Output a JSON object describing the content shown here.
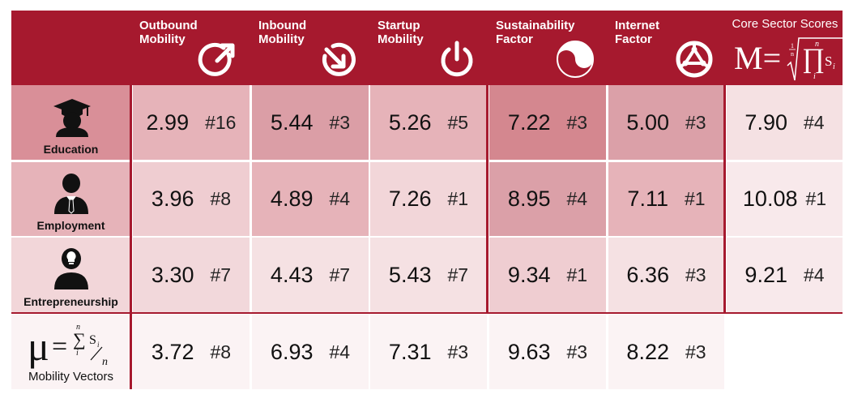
{
  "colors": {
    "header": "#a6192e",
    "line": "#a6192e"
  },
  "header": {
    "columns": [
      {
        "label": "Outbound\nMobility",
        "icon": "outbound-arrow-icon"
      },
      {
        "label": "Inbound\nMobility",
        "icon": "inbound-arrow-icon"
      },
      {
        "label": "Startup\nMobility",
        "icon": "power-icon"
      },
      {
        "label": "Sustainability\nFactor",
        "icon": "yin-yang-icon"
      },
      {
        "label": "Internet\nFactor",
        "icon": "globe-network-icon"
      }
    ],
    "core_title": "Core Sector Scores"
  },
  "rows": [
    {
      "label": "Education",
      "icon": "graduate-icon"
    },
    {
      "label": "Employment",
      "icon": "employee-icon"
    },
    {
      "label": "Entrepreneurship",
      "icon": "entrepreneur-icon"
    }
  ],
  "footer": {
    "label": "Mobility Vectors"
  },
  "chart_data": {
    "type": "table",
    "columns": [
      "Outbound Mobility",
      "Inbound Mobility",
      "Startup Mobility",
      "Sustainability Factor",
      "Internet Factor",
      "Core Sector Scores"
    ],
    "rows": [
      {
        "name": "Education",
        "values": [
          2.99,
          5.44,
          5.26,
          7.22,
          5.0,
          7.9
        ],
        "ranks": [
          "#16",
          "#3",
          "#5",
          "#3",
          "#3",
          "#4"
        ],
        "labels": [
          "2.99",
          "5.44",
          "5.26",
          "7.22",
          "5.00",
          "7.90"
        ]
      },
      {
        "name": "Employment",
        "values": [
          3.96,
          4.89,
          7.26,
          8.95,
          7.11,
          10.08
        ],
        "ranks": [
          "#8",
          "#4",
          "#1",
          "#4",
          "#1",
          "#1"
        ],
        "labels": [
          "3.96",
          "4.89",
          "7.26",
          "8.95",
          "7.11",
          "10.08"
        ]
      },
      {
        "name": "Entrepreneurship",
        "values": [
          3.3,
          4.43,
          5.43,
          9.34,
          6.36,
          9.21
        ],
        "ranks": [
          "#7",
          "#7",
          "#7",
          "#1",
          "#3",
          "#4"
        ],
        "labels": [
          "3.30",
          "4.43",
          "5.43",
          "9.34",
          "6.36",
          "9.21"
        ]
      },
      {
        "name": "Mobility Vectors",
        "values": [
          3.72,
          6.93,
          7.31,
          9.63,
          8.22
        ],
        "ranks": [
          "#8",
          "#4",
          "#3",
          "#3",
          "#3"
        ],
        "labels": [
          "3.72",
          "6.93",
          "7.31",
          "9.63",
          "8.22"
        ]
      }
    ],
    "cell_colors": [
      [
        "#e6b3b9",
        "#db9ea6",
        "#e6b3b9",
        "#d4878f",
        "#dba0a8",
        "#f5e1e3"
      ],
      [
        "#efcdd1",
        "#e6b3b9",
        "#f2d6d9",
        "#dba0a8",
        "#e6b3b9",
        "#f8e9eb"
      ],
      [
        "#f2d8db",
        "#f5e1e3",
        "#f5e1e3",
        "#efcdd1",
        "#f5e1e3",
        "#f8e9eb"
      ],
      [
        "#fbf3f4",
        "#fbf3f4",
        "#fbf3f4",
        "#fbf3f4",
        "#fbf3f4",
        "#ffffff"
      ]
    ],
    "rowlabel_colors": [
      "#d98f98",
      "#e6b3b9",
      "#f2d6d9",
      "#fbf3f4"
    ]
  }
}
